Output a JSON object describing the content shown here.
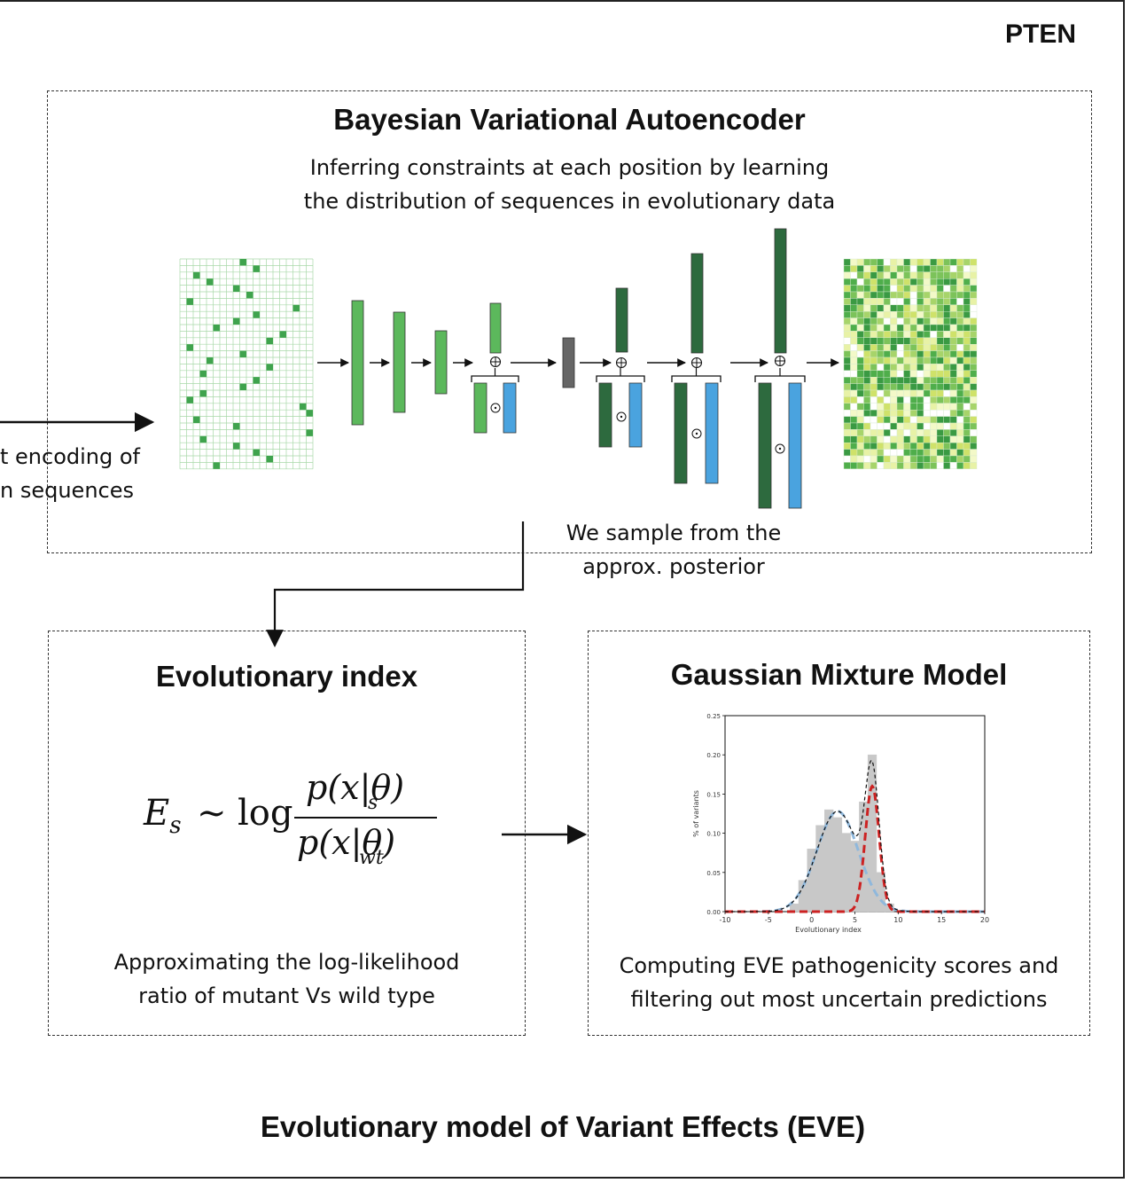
{
  "corner_label": "PTEN",
  "vae": {
    "title": "Bayesian Variational Autoencoder",
    "subtitle_lines": [
      "Inferring constraints at each position by learning",
      "the distribution of sequences in evolutionary data"
    ],
    "sample_note_lines": [
      "We sample from the",
      "approx. posterior"
    ]
  },
  "input_label_lines": [
    "t encoding of",
    "n sequences"
  ],
  "evolutionary_index": {
    "title": "Evolutionary index",
    "formula": {
      "lhs": "E",
      "lhs_sub": "s",
      "relation": "∼",
      "op": "log",
      "numerator": "p(x|θ)",
      "num_sub": "s",
      "denominator": "p(x|θ)",
      "den_sub": "wt"
    },
    "caption_lines": [
      "Approximating the log-likelihood",
      "ratio of mutant Vs wild type"
    ]
  },
  "gmm": {
    "title": "Gaussian Mixture Model",
    "caption_lines": [
      "Computing EVE pathogenicity scores and",
      "filtering out most uncertain predictions"
    ]
  },
  "footer_title": "Evolutionary model of Variant Effects (EVE)",
  "colors": {
    "light_green": "#5cb85c",
    "dark_green": "#2d6a3e",
    "blue": "#4aa3df",
    "grey": "#666666",
    "grid": "#a9d8a9",
    "red": "#cc2222",
    "blue_dash": "#8fb8dc"
  },
  "chart_data": {
    "type": "area",
    "title": "",
    "xlabel": "Evolutionary index",
    "ylabel": "% of variants",
    "xlim": [
      -10,
      20
    ],
    "ylim": [
      0,
      0.25
    ],
    "x_ticks": [
      -10,
      -5,
      0,
      5,
      10,
      15,
      20
    ],
    "y_ticks": [
      0.0,
      0.05,
      0.1,
      0.15,
      0.2,
      0.25
    ],
    "y_tick_labels": [
      "0.00",
      "0.05",
      "0.10",
      "0.15",
      "0.20",
      "0.25"
    ],
    "histogram": {
      "x": [
        -2,
        -1,
        0,
        1,
        2,
        3,
        4,
        5,
        6,
        7,
        8,
        9
      ],
      "values": [
        0.01,
        0.04,
        0.08,
        0.11,
        0.13,
        0.12,
        0.1,
        0.09,
        0.14,
        0.2,
        0.05,
        0.01
      ]
    },
    "series": [
      {
        "kind": "gaussian",
        "color": "#8fb8dc",
        "mean": 3.0,
        "sd": 2.4,
        "peak": 0.128
      },
      {
        "kind": "gaussian",
        "color": "#cc2222",
        "mean": 7.0,
        "sd": 0.8,
        "peak": 0.16
      },
      {
        "kind": "mixture",
        "color": "#111111"
      }
    ]
  }
}
